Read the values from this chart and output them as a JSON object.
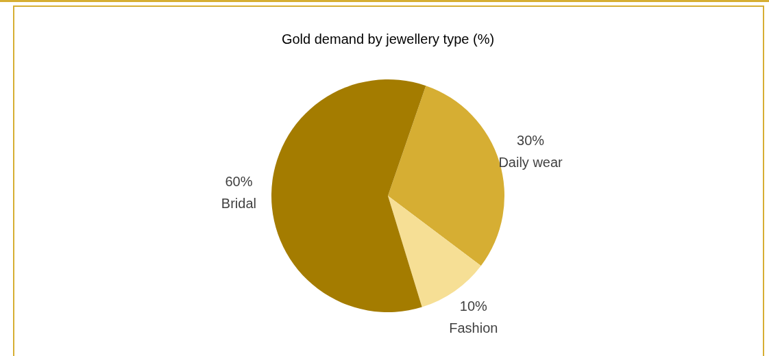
{
  "chart_data": {
    "type": "pie",
    "title": "Gold demand by jewellery type (%)",
    "categories": [
      "Daily wear",
      "Fashion",
      "Bridal"
    ],
    "values": [
      30,
      10,
      60
    ],
    "colors": [
      "#d6ae33",
      "#f6df95",
      "#a47c00"
    ],
    "value_labels": [
      "30%",
      "10%",
      "60%"
    ],
    "legend": false
  }
}
